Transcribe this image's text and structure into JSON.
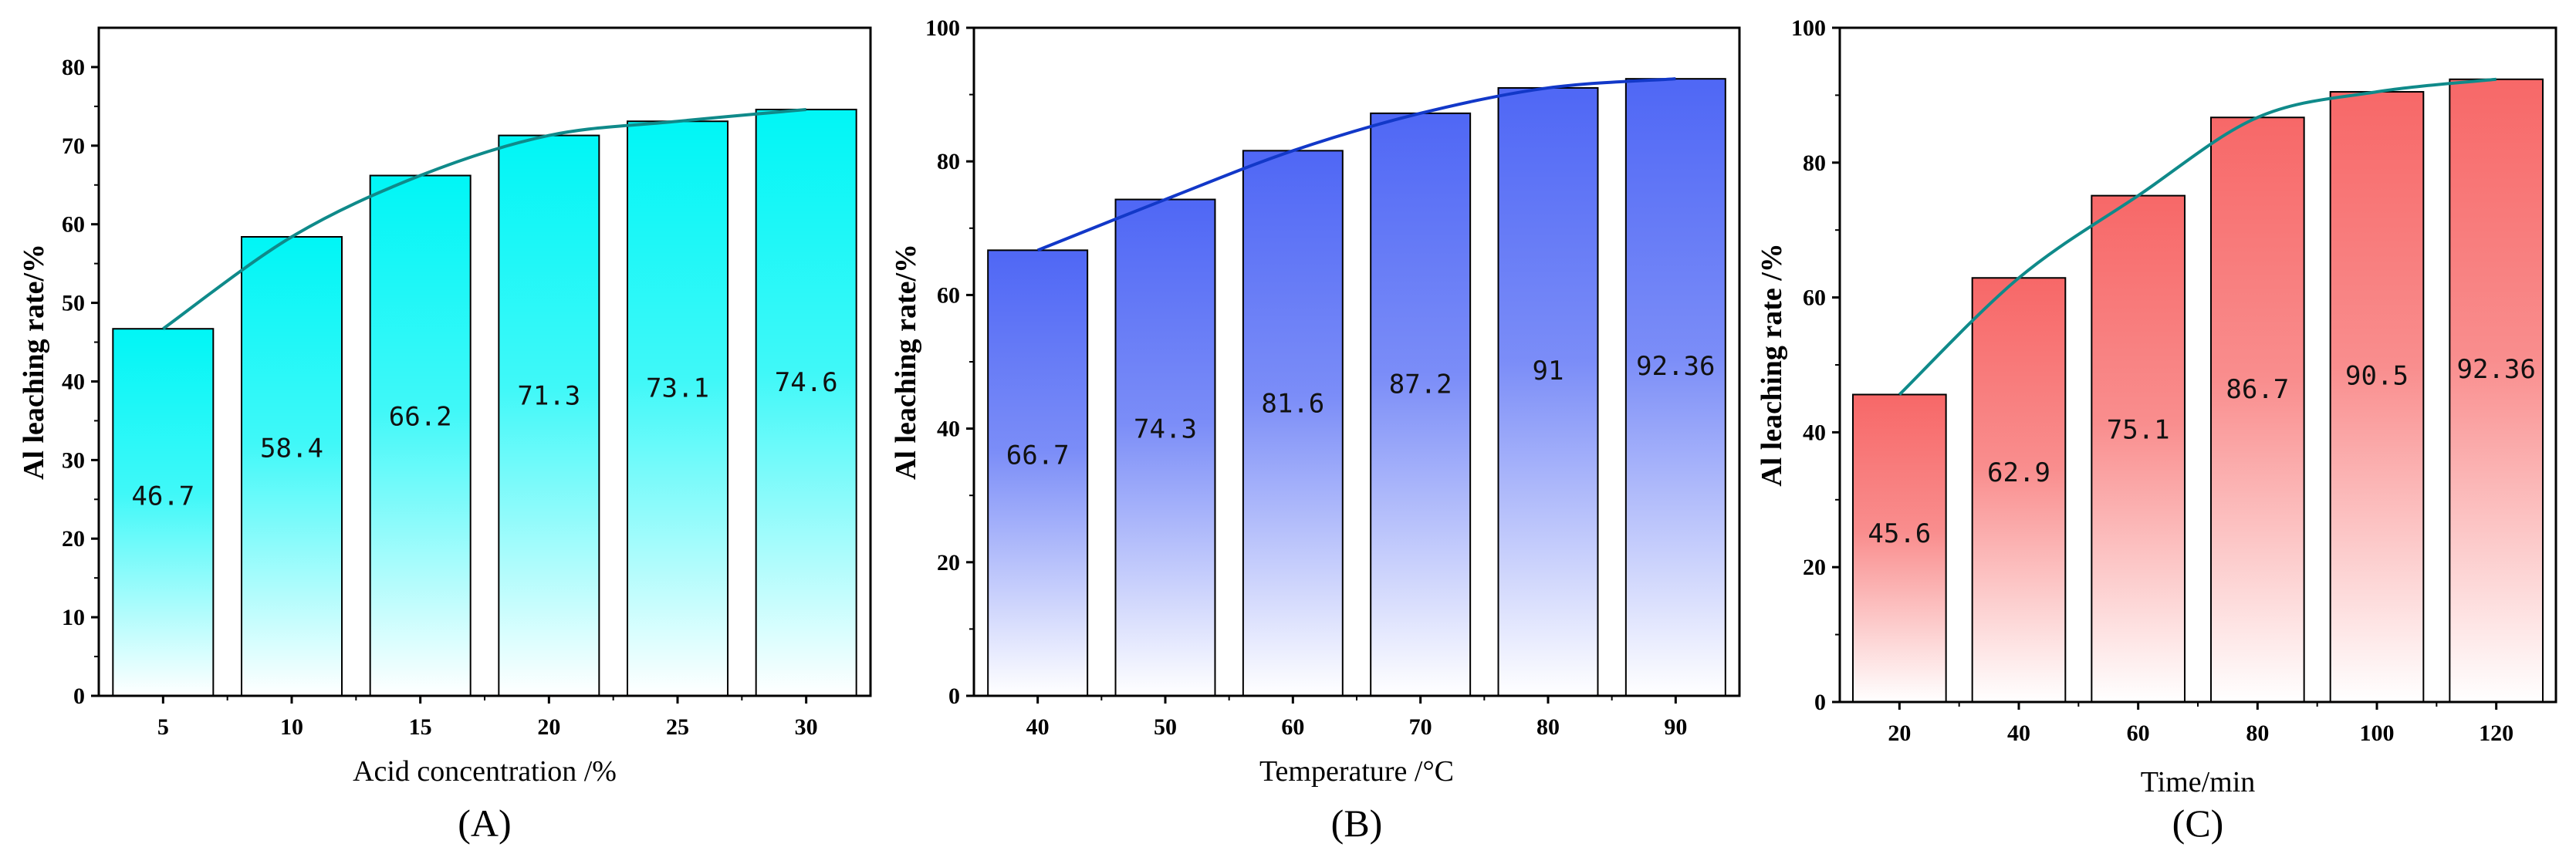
{
  "chart_data": [
    {
      "type": "bar",
      "panel_label": "(A)",
      "xlabel": "Acid concentration /%",
      "ylabel": "Al leaching rate/%",
      "categories": [
        "5",
        "10",
        "15",
        "20",
        "25",
        "30"
      ],
      "values": [
        46.7,
        58.4,
        66.2,
        71.3,
        73.1,
        74.6
      ],
      "value_labels": [
        "46.7",
        "58.4",
        "66.2",
        "71.3",
        "73.1",
        "74.6"
      ],
      "ylim": [
        0,
        85
      ],
      "yticks": [
        0,
        10,
        20,
        30,
        40,
        50,
        60,
        70,
        80
      ],
      "bar_color": "#00f6f6",
      "line_color": "#0f8a8a",
      "trend_line": true
    },
    {
      "type": "bar",
      "panel_label": "(B)",
      "xlabel": "Temperature /°C",
      "ylabel": "Al leaching rate/%",
      "categories": [
        "40",
        "50",
        "60",
        "70",
        "80",
        "90"
      ],
      "values": [
        66.7,
        74.3,
        81.6,
        87.2,
        91,
        92.36
      ],
      "value_labels": [
        "66.7",
        "74.3",
        "81.6",
        "87.2",
        "91",
        "92.36"
      ],
      "ylim": [
        0,
        100
      ],
      "yticks": [
        0,
        20,
        40,
        60,
        80,
        100
      ],
      "bar_color": "#4f67f5",
      "line_color": "#1238c8",
      "trend_line": true
    },
    {
      "type": "bar",
      "panel_label": "(C)",
      "xlabel": "Time/min",
      "ylabel": "Al leaching rate /%",
      "categories": [
        "20",
        "40",
        "60",
        "80",
        "100",
        "120"
      ],
      "values": [
        45.6,
        62.9,
        75.1,
        86.7,
        90.5,
        92.36
      ],
      "value_labels": [
        "45.6",
        "62.9",
        "75.1",
        "86.7",
        "90.5",
        "92.36"
      ],
      "ylim": [
        0,
        100
      ],
      "yticks": [
        0,
        20,
        40,
        60,
        80,
        100
      ],
      "bar_color": "#f76868",
      "line_color": "#0f8a8a",
      "trend_line": true
    }
  ]
}
